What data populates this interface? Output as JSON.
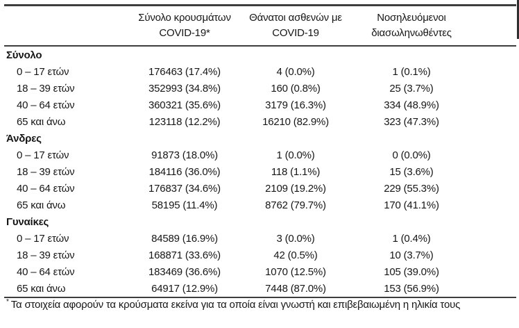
{
  "table": {
    "col_headers": [
      {
        "line1": "Σύνολο κρουσμάτων",
        "line2": "COVID-19*"
      },
      {
        "line1": "Θάνατοι ασθενών με",
        "line2": "COVID-19"
      },
      {
        "line1": "Νοσηλευόμενοι",
        "line2": "διασωληνωθέντες"
      }
    ],
    "sections": [
      {
        "label": "Σύνολο",
        "rows": [
          {
            "label": "0 – 17 ετών",
            "cases": "176463 (17.4%)",
            "deaths": "4 (0.0%)",
            "intubated": "1 (0.1%)"
          },
          {
            "label": "18 – 39 ετών",
            "cases": "352993 (34.8%)",
            "deaths": "160 (0.8%)",
            "intubated": "25 (3.7%)"
          },
          {
            "label": "40 – 64 ετών",
            "cases": "360321 (35.6%)",
            "deaths": "3179 (16.3%)",
            "intubated": "334 (48.9%)"
          },
          {
            "label": "65 και άνω",
            "cases": "123118 (12.2%)",
            "deaths": "16210 (82.9%)",
            "intubated": "323 (47.3%)"
          }
        ]
      },
      {
        "label": "Άνδρες",
        "rows": [
          {
            "label": "0 – 17 ετών",
            "cases": "91873 (18.0%)",
            "deaths": "1 (0.0%)",
            "intubated": "0 (0.0%)"
          },
          {
            "label": "18 – 39 ετών",
            "cases": "184116 (36.0%)",
            "deaths": "118 (1.1%)",
            "intubated": "15 (3.6%)"
          },
          {
            "label": "40 – 64 ετών",
            "cases": "176837 (34.6%)",
            "deaths": "2109 (19.2%)",
            "intubated": "229 (55.3%)"
          },
          {
            "label": "65 και άνω",
            "cases": "58195 (11.4%)",
            "deaths": "8762 (79.7%)",
            "intubated": "170 (41.1%)"
          }
        ]
      },
      {
        "label": "Γυναίκες",
        "rows": [
          {
            "label": "0 – 17 ετών",
            "cases": "84589 (16.9%)",
            "deaths": "3 (0.0%)",
            "intubated": "1 (0.4%)"
          },
          {
            "label": "18 – 39 ετών",
            "cases": "168871 (33.6%)",
            "deaths": "42 (0.5%)",
            "intubated": "10 (3.7%)"
          },
          {
            "label": "40 – 64 ετών",
            "cases": "183469 (36.6%)",
            "deaths": "1070 (12.5%)",
            "intubated": "105 (39.0%)"
          },
          {
            "label": "65 και άνω",
            "cases": "64917 (12.9%)",
            "deaths": "7448 (87.0%)",
            "intubated": "153 (56.9%)"
          }
        ]
      }
    ],
    "footnote_marker": "*",
    "footnote": "Τα στοιχεία αφορούν τα κρούσματα εκείνα για τα οποία είναι γνωστή και επιβεβαιωμένη η ηλικία τους"
  },
  "colors": {
    "background": "#ffffff",
    "text": "#161616",
    "rule": "#3d3d3d"
  }
}
